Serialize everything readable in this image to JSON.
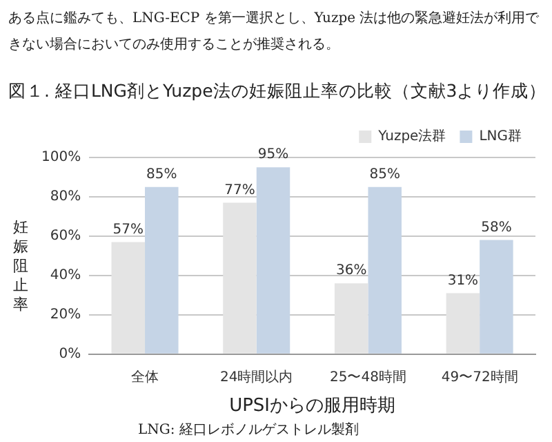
{
  "chart_data": {
    "type": "bar",
    "title": "図１. 経口LNG剤とYuzpe法の妊娠阻止率の比較（文献3より作成）",
    "xlabel": "UPSIからの服用時期",
    "ylabel": "妊娠阻止率",
    "annotations": [
      "ある点に鑑みても、LNG-ECP を第一選択とし、Yuzpe 法は他の緊急避妊法が利用できない場合においてのみ使用することが推奨される。",
      "LNG: 経口レボノルゲストレル製剤"
    ],
    "categories": [
      "全体",
      "24時間以内",
      "25〜48時間",
      "49〜72時間"
    ],
    "series": [
      {
        "name": "Yuzpe法群",
        "color": "#e4e4e4",
        "values": [
          57,
          77,
          36,
          31
        ],
        "value_labels": [
          "57%",
          "77%",
          "36%",
          "31%"
        ]
      },
      {
        "name": "LNG群",
        "color": "#c5d4e6",
        "values": [
          85,
          95,
          85,
          58
        ],
        "value_labels": [
          "85%",
          "95%",
          "85%",
          "58%"
        ]
      }
    ],
    "ylim": [
      0,
      100
    ],
    "yticks": [
      {
        "value": 0,
        "label": "0%"
      },
      {
        "value": 20,
        "label": "20%"
      },
      {
        "value": 40,
        "label": "40%"
      },
      {
        "value": 60,
        "label": "60%"
      },
      {
        "value": 80,
        "label": "80%"
      },
      {
        "value": 100,
        "label": "100%"
      }
    ],
    "grid": "y",
    "legend": "top right"
  }
}
